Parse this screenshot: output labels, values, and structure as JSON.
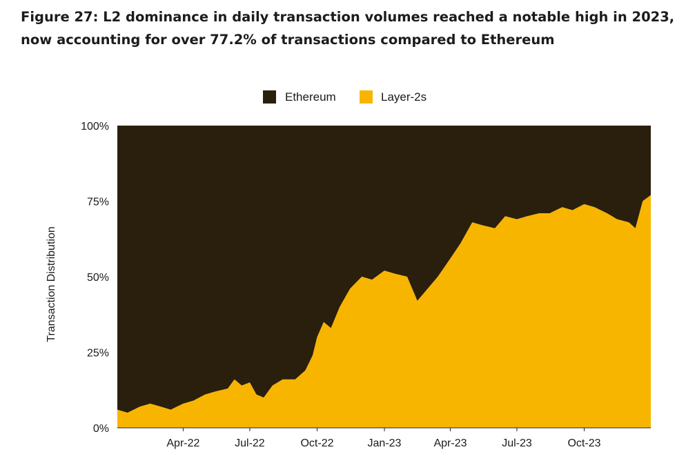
{
  "title": {
    "line1": "Figure 27: L2 dominance in daily transaction volumes reached a notable high in 2023,",
    "line2": "now accounting for over 77.2% of transactions compared to Ethereum"
  },
  "colors": {
    "ethereum": "#2a1f0d",
    "layer2": "#f8b500"
  },
  "chart_data": {
    "type": "area",
    "stacked": "100%",
    "ylabel": "Transaction Distribution",
    "xlabel": "",
    "ylim": [
      0,
      100
    ],
    "yticks": [
      0,
      25,
      50,
      75,
      100
    ],
    "ytick_labels": [
      "0%",
      "25%",
      "50%",
      "75%",
      "100%"
    ],
    "xlim": [
      "2022-01-01",
      "2023-12-31"
    ],
    "xtick_labels": [
      "Apr-22",
      "Jul-22",
      "Oct-22",
      "Jan-23",
      "Apr-23",
      "Jul-23",
      "Oct-23"
    ],
    "xtick_dates": [
      "2022-04-01",
      "2022-07-01",
      "2022-10-01",
      "2023-01-01",
      "2023-04-01",
      "2023-07-01",
      "2023-10-01"
    ],
    "legend": {
      "position": "top-center",
      "entries": [
        "Ethereum",
        "Layer-2s"
      ]
    },
    "grid": false,
    "x": [
      "2022-01-01",
      "2022-01-15",
      "2022-02-01",
      "2022-02-15",
      "2022-03-01",
      "2022-03-15",
      "2022-04-01",
      "2022-04-15",
      "2022-05-01",
      "2022-05-15",
      "2022-06-01",
      "2022-06-10",
      "2022-06-20",
      "2022-07-01",
      "2022-07-10",
      "2022-07-20",
      "2022-08-01",
      "2022-08-15",
      "2022-09-01",
      "2022-09-15",
      "2022-09-25",
      "2022-10-01",
      "2022-10-10",
      "2022-10-20",
      "2022-11-01",
      "2022-11-15",
      "2022-12-01",
      "2022-12-15",
      "2023-01-01",
      "2023-01-15",
      "2023-02-01",
      "2023-02-15",
      "2023-03-01",
      "2023-03-15",
      "2023-04-01",
      "2023-04-15",
      "2023-05-01",
      "2023-05-15",
      "2023-06-01",
      "2023-06-15",
      "2023-07-01",
      "2023-07-15",
      "2023-08-01",
      "2023-08-15",
      "2023-09-01",
      "2023-09-15",
      "2023-10-01",
      "2023-10-15",
      "2023-11-01",
      "2023-11-15",
      "2023-12-01",
      "2023-12-10",
      "2023-12-20",
      "2023-12-31"
    ],
    "series": [
      {
        "name": "Layer-2s",
        "values": [
          6,
          5,
          7,
          8,
          7,
          6,
          8,
          9,
          11,
          12,
          13,
          16,
          14,
          15,
          11,
          10,
          14,
          16,
          16,
          19,
          24,
          30,
          35,
          33,
          40,
          46,
          50,
          49,
          52,
          51,
          50,
          42,
          46,
          50,
          56,
          61,
          68,
          67,
          66,
          70,
          69,
          70,
          71,
          71,
          73,
          72,
          74,
          73,
          71,
          69,
          68,
          66,
          75,
          77
        ]
      },
      {
        "name": "Ethereum",
        "values": [
          94,
          95,
          93,
          92,
          93,
          94,
          92,
          91,
          89,
          88,
          87,
          84,
          86,
          85,
          89,
          90,
          86,
          84,
          84,
          81,
          76,
          70,
          65,
          67,
          60,
          54,
          50,
          51,
          48,
          49,
          50,
          58,
          54,
          50,
          44,
          39,
          32,
          33,
          34,
          30,
          31,
          30,
          29,
          29,
          27,
          28,
          26,
          27,
          29,
          31,
          32,
          34,
          25,
          23
        ]
      }
    ]
  }
}
